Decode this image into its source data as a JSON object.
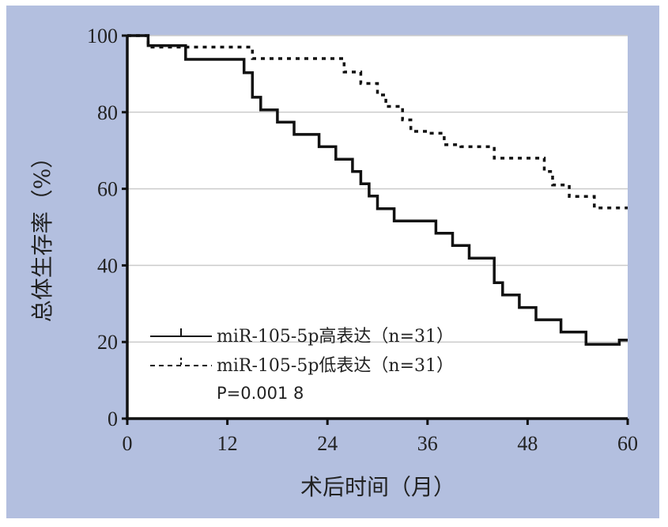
{
  "chart_data": {
    "type": "line",
    "subtype": "kaplan-meier",
    "title": "",
    "xlabel": "术后时间（月）",
    "ylabel": "总体生存率（%）",
    "xlim": [
      0,
      60
    ],
    "ylim": [
      0,
      100
    ],
    "xticks": [
      "0",
      "12",
      "24",
      "36",
      "48",
      "60"
    ],
    "yticks": [
      "0",
      "20",
      "40",
      "60",
      "80",
      "100"
    ],
    "grid": "horizontal",
    "legend_position": "lower-left",
    "annotation": "P=0.001 8",
    "colors": {
      "background": "#b3bfdf",
      "plot": "#ffffff",
      "grid": "#cccccc",
      "line": "#111111"
    },
    "series": [
      {
        "name": "miR-105-5p 高表达（n=31）",
        "legend_label": "miR-105-5p高表达（n=31）",
        "style": "solid",
        "x": [
          0,
          2.5,
          2.5,
          7,
          7,
          14,
          14,
          15,
          15,
          16,
          16,
          18,
          18,
          20,
          20,
          23,
          23,
          25,
          25,
          27,
          27,
          28,
          28,
          29,
          29,
          30,
          30,
          32,
          32,
          37,
          37,
          39,
          39,
          41,
          41,
          44,
          44,
          45,
          45,
          47,
          47,
          49,
          49,
          52,
          52,
          55,
          55,
          59,
          59,
          60
        ],
        "y": [
          100,
          100,
          97.4,
          97.4,
          93.8,
          93.8,
          90.3,
          90.3,
          83.9,
          83.9,
          80.6,
          80.6,
          77.4,
          77.4,
          74.2,
          74.2,
          71,
          71,
          67.7,
          67.7,
          64.5,
          64.5,
          61.3,
          61.3,
          58.1,
          58.1,
          54.8,
          54.8,
          51.6,
          51.6,
          48.4,
          48.4,
          45.2,
          45.2,
          41.9,
          41.9,
          35.5,
          35.5,
          32.3,
          32.3,
          29,
          29,
          25.8,
          25.8,
          22.6,
          22.6,
          19.4,
          19.4,
          20.5,
          20.5
        ]
      },
      {
        "name": "miR-105-5p 低表达（n=31）",
        "legend_label": "miR-105-5p低表达（n=31）",
        "style": "dashed",
        "x": [
          0,
          2.5,
          2.5,
          15,
          15,
          26,
          26,
          28,
          28,
          30,
          30,
          31,
          31,
          33,
          33,
          34,
          34,
          36,
          36,
          38,
          38,
          40,
          40,
          44,
          44,
          46,
          46,
          50,
          50,
          51,
          51,
          53,
          53,
          55,
          55,
          56,
          56,
          59,
          59,
          60
        ],
        "y": [
          100,
          100,
          97,
          97,
          94,
          94,
          90.5,
          90.5,
          87.5,
          87.5,
          84.5,
          84.5,
          81.5,
          81.5,
          78,
          78,
          75,
          75,
          74.5,
          74.5,
          71.5,
          71.5,
          71,
          71,
          68,
          68,
          68,
          68,
          64.5,
          64.5,
          61,
          61,
          58,
          58,
          58,
          58,
          55,
          55,
          55,
          55
        ]
      }
    ]
  }
}
